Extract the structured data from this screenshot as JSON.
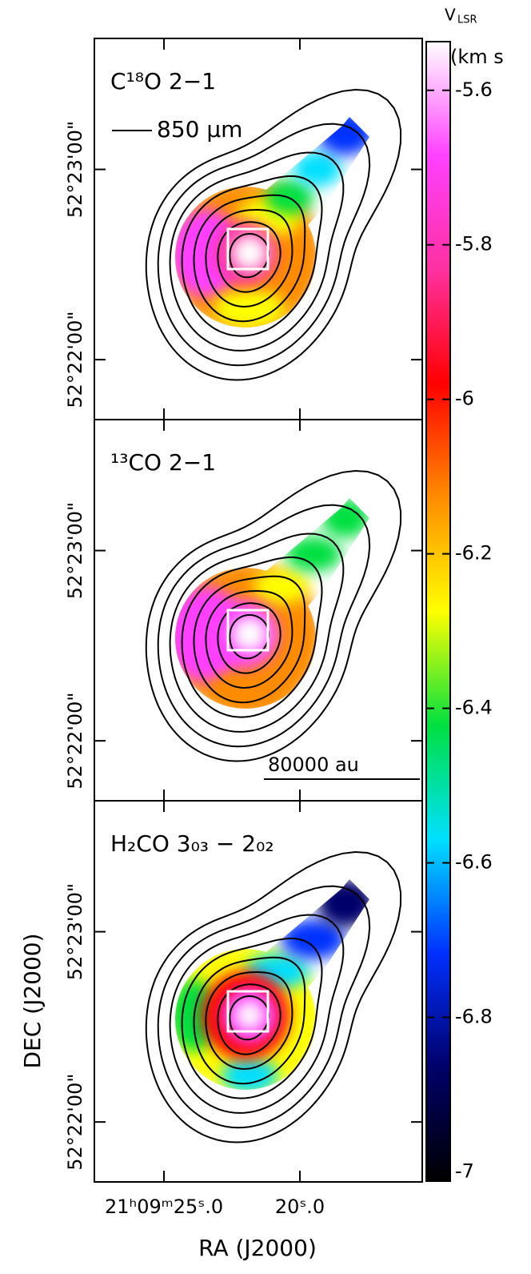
{
  "chart_data": {
    "type": "map",
    "x_label": "RA (J2000)",
    "y_label": "DEC (J2000)",
    "xlim": [
      27.56,
      15.5
    ],
    "xticks": [
      {
        "value": 25.0,
        "label": "21ʰ09ᵐ25ˢ.0"
      },
      {
        "value": 20.0,
        "label": "20ˢ.0"
      }
    ],
    "ylim": [
      52.361417,
      52.394806
    ],
    "yticks": [
      {
        "value": 52.366667,
        "label": "52°22'00\""
      },
      {
        "value": 52.383333,
        "label": "52°23'00\""
      }
    ],
    "legend": "850 μm",
    "panels": [
      {
        "label": "C¹⁸O 2−1"
      },
      {
        "label": "¹³CO 2−1",
        "scale_bar": "80000 au"
      },
      {
        "label": "H₂CO 3₀₃ − 2₀₂"
      }
    ],
    "colorbar": {
      "label": "V",
      "label_sub": "LSR",
      "unit": "(km s",
      "lim": [
        -7.012,
        -5.537
      ],
      "ticks": [
        -7,
        -6.8,
        -6.6,
        -6.4,
        -6.2,
        -6,
        -5.8,
        -5.6
      ],
      "colormap": [
        "#000000",
        "#00006a",
        "#0030ff",
        "#00e0ff",
        "#00e040",
        "#ffff00",
        "#ff8c00",
        "#ff0000",
        "#ff30a0",
        "#ff40ff",
        "#ffffff"
      ]
    }
  }
}
